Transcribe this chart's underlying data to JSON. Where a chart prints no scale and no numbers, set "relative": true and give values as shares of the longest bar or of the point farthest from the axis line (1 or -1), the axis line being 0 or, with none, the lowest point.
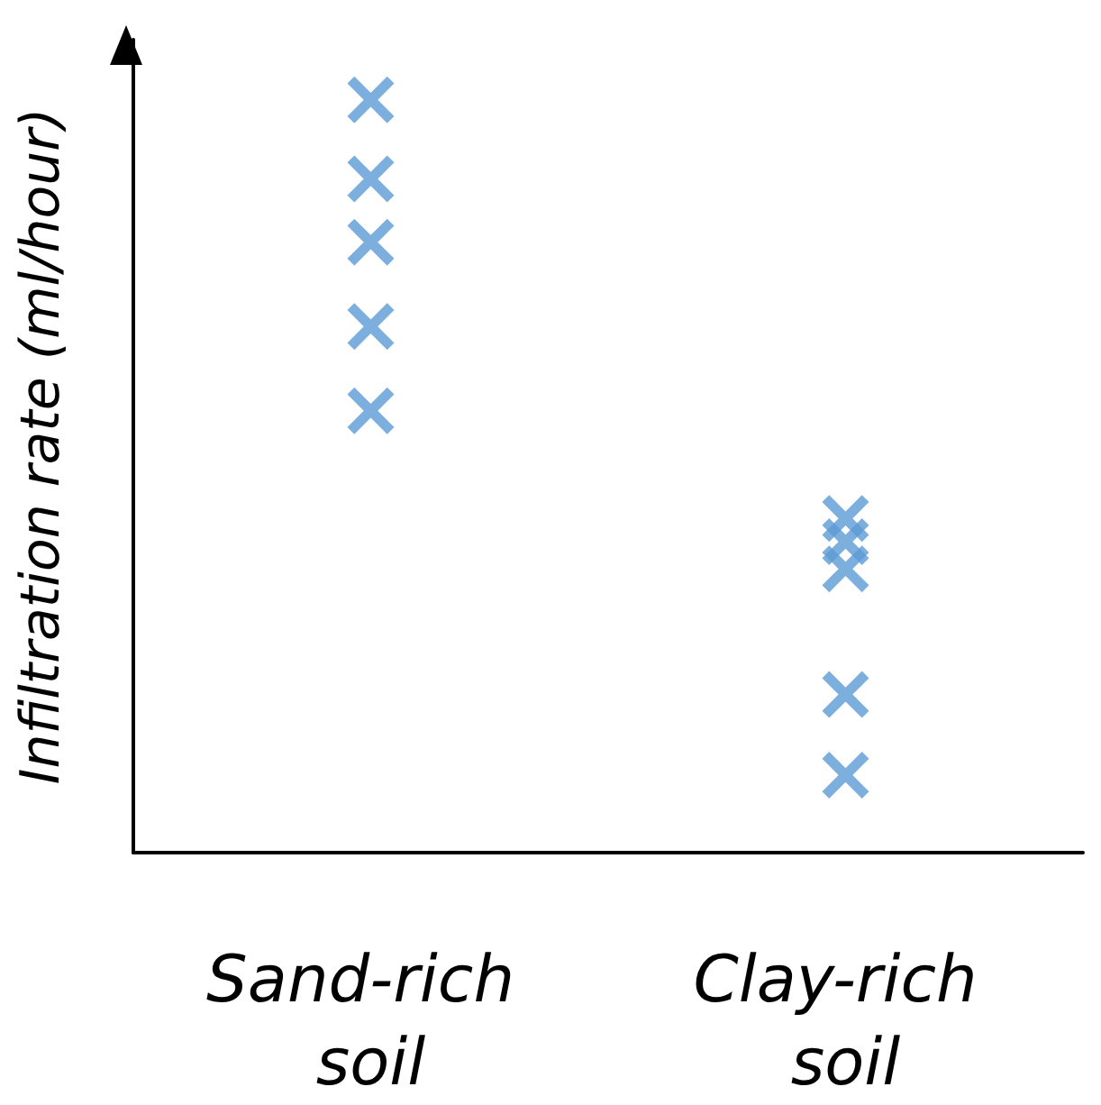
{
  "chart_data": {
    "type": "scatter",
    "ylabel": "Infiltration rate (ml/hour)",
    "categories": [
      "Sand-rich soil",
      "Clay-rich soil"
    ],
    "relative": true,
    "marker": "cross",
    "grid": false,
    "series": [
      {
        "color": "#5b9bd5",
        "x": [
          "Sand-rich soil",
          "Sand-rich soil",
          "Sand-rich soil",
          "Sand-rich soil",
          "Sand-rich soil",
          "Clay-rich soil",
          "Clay-rich soil",
          "Clay-rich soil",
          "Clay-rich soil",
          "Clay-rich soil"
        ],
        "values": [
          1,
          0.895,
          0.811,
          0.699,
          0.587,
          0.444,
          0.413,
          0.377,
          0.21,
          0.103
        ]
      }
    ]
  }
}
